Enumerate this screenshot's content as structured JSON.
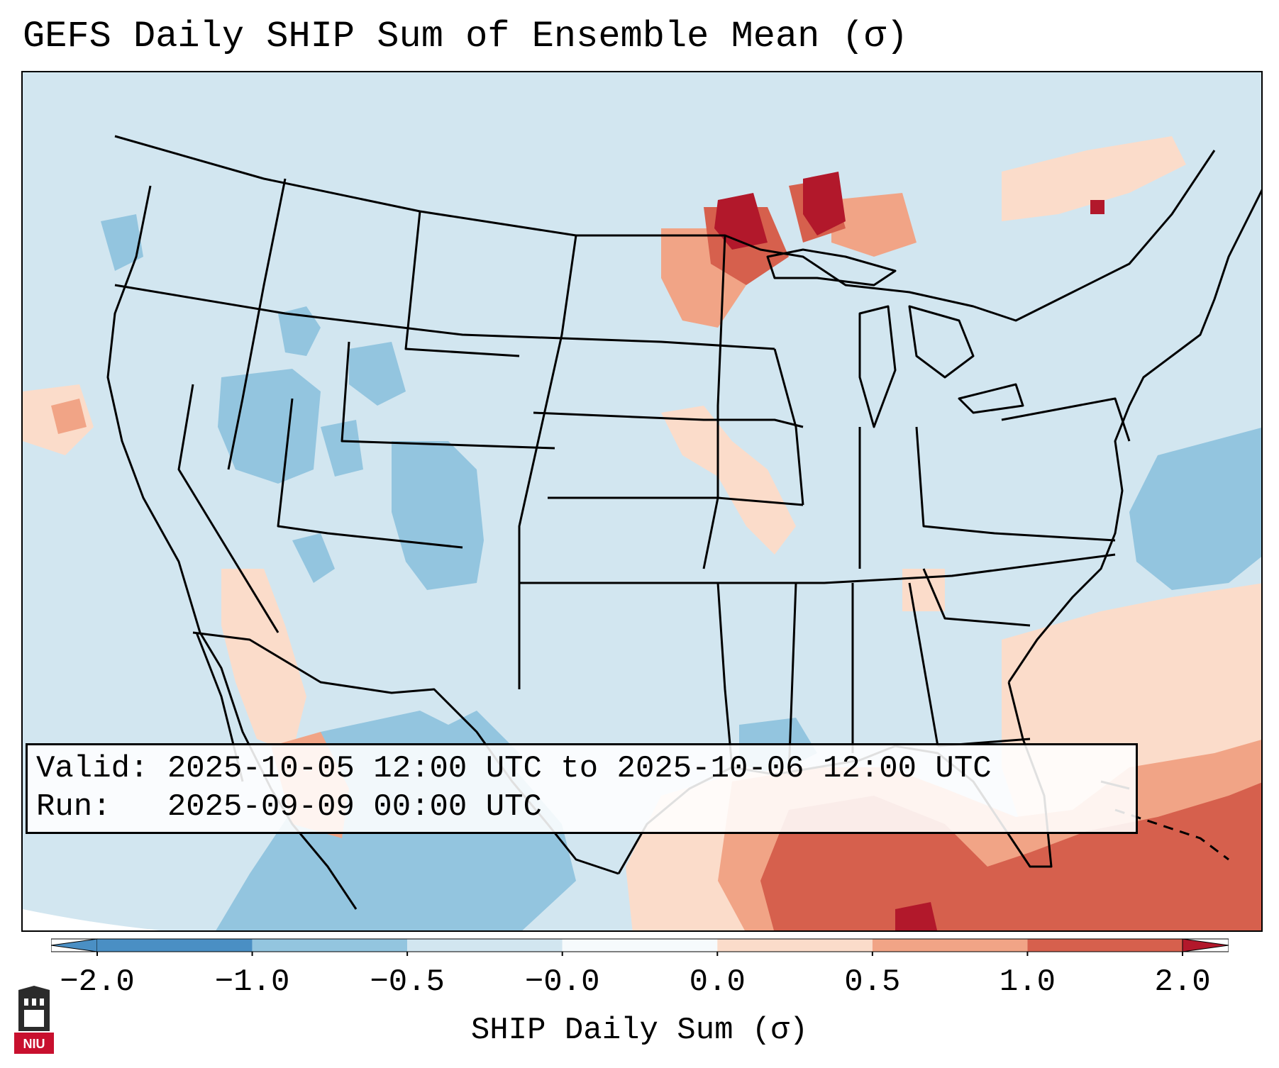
{
  "title": "GEFS Daily SHIP Sum of Ensemble Mean (σ)",
  "info": {
    "valid_label": "Valid:",
    "valid_value": "2025-10-05 12:00 UTC to 2025-10-06 12:00 UTC",
    "run_label": "Run:",
    "run_value": "2025-09-09 00:00 UTC"
  },
  "colorbar": {
    "label": "SHIP Daily Sum (σ)",
    "ticks": [
      "−2.0",
      "−1.0",
      "−0.5",
      "−0.0",
      "0.0",
      "0.5",
      "1.0",
      "2.0"
    ],
    "colors": [
      "#4a8fc4",
      "#93c5df",
      "#d2e6f0",
      "#f6fafc",
      "#fbdcca",
      "#f1a486",
      "#d6604d",
      "#b2182b"
    ]
  },
  "logo": {
    "text": "NIU"
  },
  "colors": {
    "neutral_ocean": "#d2e6f0",
    "boundary": "#000000"
  }
}
